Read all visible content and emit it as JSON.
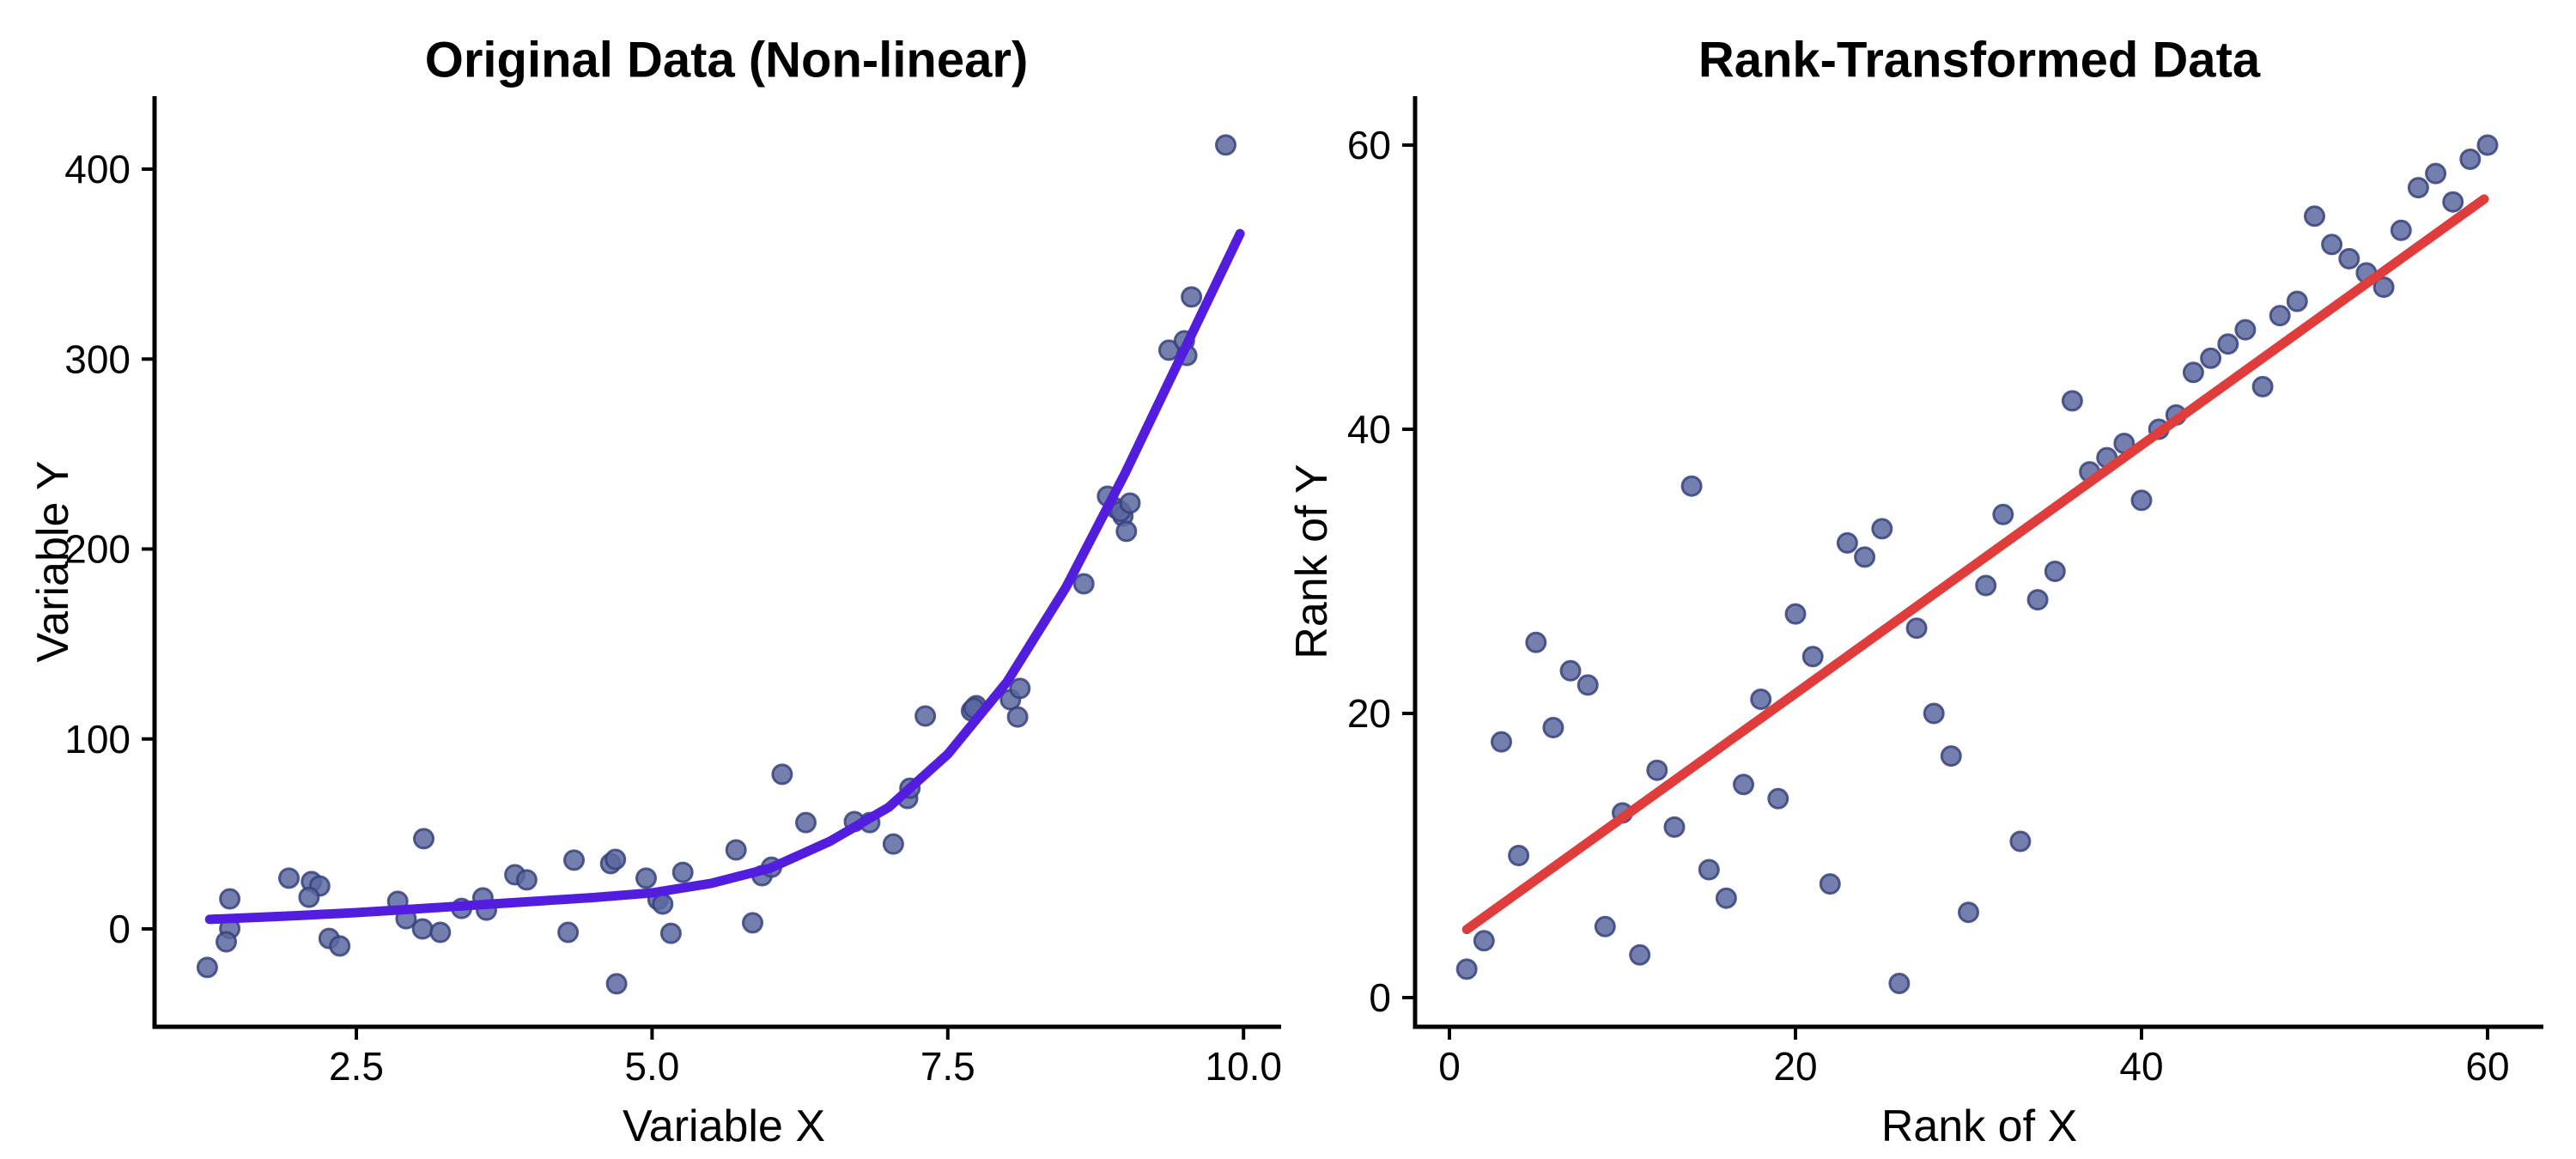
{
  "figure": {
    "background": "#ffffff",
    "text_color": "#000000",
    "axis_color": "#000000"
  },
  "chart_data": [
    {
      "type": "scatter",
      "title": "Original Data (Non-linear)",
      "xlabel": "Variable X",
      "ylabel": "Variable Y",
      "xlim": [
        0.8,
        10.3
      ],
      "ylim": [
        -52,
        437
      ],
      "xticks": [
        2.5,
        5.0,
        7.5,
        10.0
      ],
      "xtick_labels": [
        "2.5",
        "5.0",
        "7.5",
        "10.0"
      ],
      "yticks": [
        0,
        100,
        200,
        300,
        400
      ],
      "ytick_labels": [
        "0",
        "100",
        "200",
        "300",
        "400"
      ],
      "grid": false,
      "legend": "none",
      "point_style": {
        "fill": "#5c69a0",
        "stroke": "#36427c",
        "opacity": 0.85,
        "radius": 11,
        "stroke_width": 3
      },
      "fit_style": {
        "color": "#531de0",
        "width": 11,
        "kind": "smooth exponential fit"
      },
      "points": [
        [
          1.24,
          -20.3
        ],
        [
          1.43,
          15.8
        ],
        [
          1.43,
          0.2
        ],
        [
          1.4,
          -6.8
        ],
        [
          1.93,
          26.7
        ],
        [
          2.12,
          24.9
        ],
        [
          2.19,
          22.6
        ],
        [
          2.1,
          16.7
        ],
        [
          2.27,
          -5.0
        ],
        [
          2.36,
          -9.0
        ],
        [
          2.85,
          14.5
        ],
        [
          2.92,
          5.4
        ],
        [
          3.07,
          47.5
        ],
        [
          3.06,
          0.0
        ],
        [
          3.21,
          -1.8
        ],
        [
          3.39,
          10.8
        ],
        [
          3.57,
          16.3
        ],
        [
          3.6,
          9.9
        ],
        [
          3.84,
          28.5
        ],
        [
          3.94,
          25.8
        ],
        [
          4.34,
          36.2
        ],
        [
          4.29,
          -1.8
        ],
        [
          4.65,
          34.4
        ],
        [
          4.69,
          36.6
        ],
        [
          4.7,
          -28.9
        ],
        [
          4.95,
          26.7
        ],
        [
          5.05,
          15.4
        ],
        [
          5.09,
          13.1
        ],
        [
          5.16,
          -2.3
        ],
        [
          5.26,
          29.8
        ],
        [
          5.71,
          41.6
        ],
        [
          5.85,
          3.2
        ],
        [
          5.93,
          28.0
        ],
        [
          6.01,
          32.5
        ],
        [
          6.1,
          81.4
        ],
        [
          6.3,
          56.0
        ],
        [
          6.71,
          56.5
        ],
        [
          6.84,
          56.0
        ],
        [
          7.04,
          44.7
        ],
        [
          7.16,
          68.7
        ],
        [
          7.18,
          74.1
        ],
        [
          7.31,
          112.1
        ],
        [
          7.7,
          114.8
        ],
        [
          7.74,
          117.5
        ],
        [
          7.72,
          116.2
        ],
        [
          8.03,
          120.7
        ],
        [
          8.09,
          111.6
        ],
        [
          8.11,
          126.6
        ],
        [
          8.65,
          181.7
        ],
        [
          8.85,
          227.8
        ],
        [
          8.92,
          221.5
        ],
        [
          8.98,
          217.4
        ],
        [
          8.96,
          219.8
        ],
        [
          9.04,
          224.2
        ],
        [
          9.01,
          209.3
        ],
        [
          9.37,
          304.7
        ],
        [
          9.5,
          309.6
        ],
        [
          9.52,
          301.9
        ],
        [
          9.56,
          332.7
        ],
        [
          9.85,
          412.7
        ]
      ],
      "curve": [
        [
          1.26,
          5
        ],
        [
          2.0,
          7
        ],
        [
          2.5,
          8.6
        ],
        [
          3.0,
          10.5
        ],
        [
          3.5,
          12.5
        ],
        [
          4.0,
          14.5
        ],
        [
          4.5,
          16.5
        ],
        [
          5.0,
          19
        ],
        [
          5.5,
          24
        ],
        [
          6.0,
          32
        ],
        [
          6.5,
          46
        ],
        [
          7.0,
          64
        ],
        [
          7.5,
          92
        ],
        [
          8.0,
          130
        ],
        [
          8.5,
          180
        ],
        [
          9.0,
          240
        ],
        [
          9.5,
          305
        ],
        [
          9.97,
          366
        ]
      ]
    },
    {
      "type": "scatter",
      "title": "Rank-Transformed Data",
      "xlabel": "Rank of X",
      "ylabel": "Rank of Y",
      "xlim": [
        -2,
        63
      ],
      "ylim": [
        -2,
        63
      ],
      "xticks": [
        0,
        20,
        40,
        60
      ],
      "xtick_labels": [
        "0",
        "20",
        "40",
        "60"
      ],
      "yticks": [
        0,
        20,
        40,
        60
      ],
      "ytick_labels": [
        "0",
        "20",
        "40",
        "60"
      ],
      "grid": false,
      "legend": "none",
      "point_style": {
        "fill": "#5c69a0",
        "stroke": "#36427c",
        "opacity": 0.85,
        "radius": 11,
        "stroke_width": 3
      },
      "fit_style": {
        "color": "#e03c3c",
        "width": 11,
        "kind": "linear fit"
      },
      "points": [
        [
          1,
          2
        ],
        [
          2,
          4
        ],
        [
          3,
          18
        ],
        [
          4,
          10
        ],
        [
          5,
          25
        ],
        [
          6,
          19
        ],
        [
          7,
          23
        ],
        [
          8,
          22
        ],
        [
          9,
          5
        ],
        [
          10,
          13
        ],
        [
          11,
          3
        ],
        [
          12,
          16
        ],
        [
          13,
          12
        ],
        [
          14,
          36
        ],
        [
          15,
          9
        ],
        [
          16,
          7
        ],
        [
          17,
          15
        ],
        [
          18,
          21
        ],
        [
          19,
          14
        ],
        [
          20,
          27
        ],
        [
          21,
          24
        ],
        [
          22,
          8
        ],
        [
          23,
          32
        ],
        [
          24,
          31
        ],
        [
          25,
          33
        ],
        [
          26,
          1
        ],
        [
          27,
          26
        ],
        [
          28,
          20
        ],
        [
          29,
          17
        ],
        [
          30,
          6
        ],
        [
          31,
          29
        ],
        [
          32,
          34
        ],
        [
          33,
          11
        ],
        [
          34,
          28
        ],
        [
          35,
          30
        ],
        [
          36,
          42
        ],
        [
          37,
          37
        ],
        [
          38,
          38
        ],
        [
          39,
          39
        ],
        [
          40,
          35
        ],
        [
          41,
          40
        ],
        [
          42,
          41
        ],
        [
          43,
          44
        ],
        [
          44,
          45
        ],
        [
          45,
          46
        ],
        [
          46,
          47
        ],
        [
          47,
          43
        ],
        [
          48,
          48
        ],
        [
          49,
          49
        ],
        [
          50,
          55
        ],
        [
          51,
          53
        ],
        [
          52,
          52
        ],
        [
          53,
          51
        ],
        [
          54,
          50
        ],
        [
          55,
          54
        ],
        [
          56,
          57
        ],
        [
          57,
          58
        ],
        [
          58,
          56
        ],
        [
          59,
          59
        ],
        [
          60,
          60
        ]
      ],
      "curve": [
        [
          1.0,
          4.8
        ],
        [
          59.8,
          56.2
        ]
      ]
    }
  ]
}
